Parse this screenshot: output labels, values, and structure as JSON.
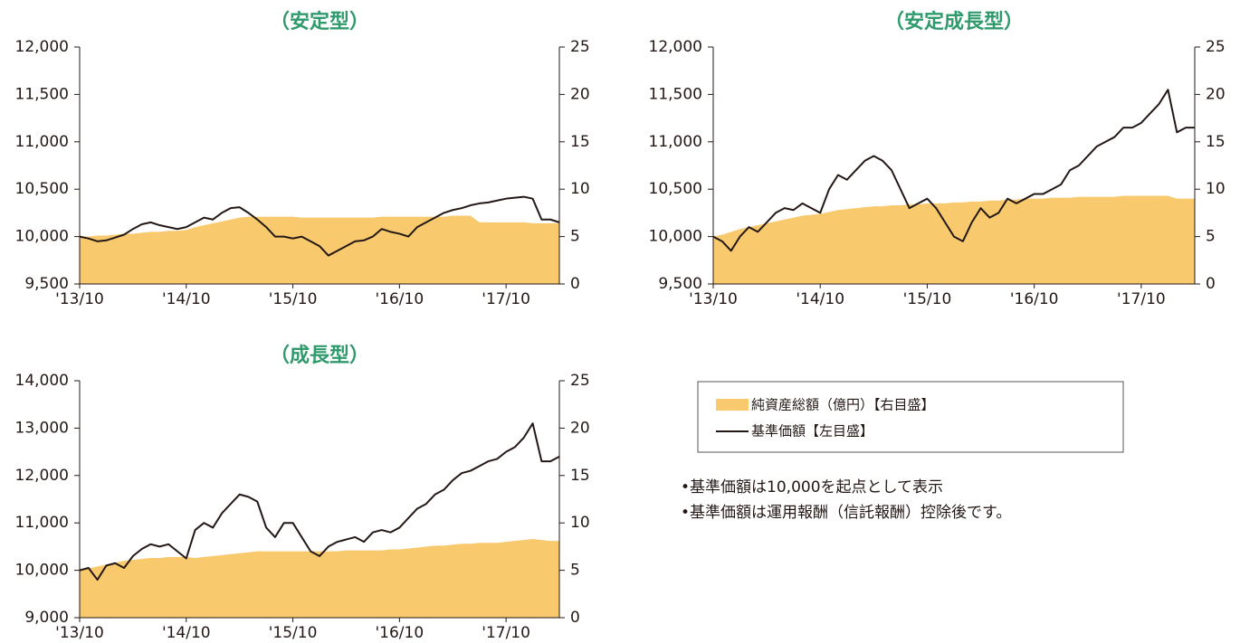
{
  "chart_data": [
    {
      "type": "line_area",
      "title": "（安定型）",
      "x": [
        "2013-10",
        "2013-11",
        "2013-12",
        "2014-01",
        "2014-02",
        "2014-03",
        "2014-04",
        "2014-05",
        "2014-06",
        "2014-07",
        "2014-08",
        "2014-09",
        "2014-10",
        "2014-11",
        "2014-12",
        "2015-01",
        "2015-02",
        "2015-03",
        "2015-04",
        "2015-05",
        "2015-06",
        "2015-07",
        "2015-08",
        "2015-09",
        "2015-10",
        "2015-11",
        "2015-12",
        "2016-01",
        "2016-02",
        "2016-03",
        "2016-04",
        "2016-05",
        "2016-06",
        "2016-07",
        "2016-08",
        "2016-09",
        "2016-10",
        "2016-11",
        "2016-12",
        "2017-01",
        "2017-02",
        "2017-03",
        "2017-04",
        "2017-05",
        "2017-06",
        "2017-07",
        "2017-08",
        "2017-09",
        "2017-10",
        "2017-11",
        "2017-12",
        "2018-01",
        "2018-02",
        "2018-03",
        "2018-04"
      ],
      "xlim": [
        "2013-10",
        "2018-04"
      ],
      "xticks": [
        {
          "value": "2013-10",
          "label": "'13/10"
        },
        {
          "value": "2014-10",
          "label": "'14/10"
        },
        {
          "value": "2015-10",
          "label": "'15/10"
        },
        {
          "value": "2016-10",
          "label": "'16/10"
        },
        {
          "value": "2017-10",
          "label": "'17/10"
        }
      ],
      "ylim": [
        9500,
        12000
      ],
      "yticks": [
        {
          "value": 9500,
          "label": "9,500"
        },
        {
          "value": 10000,
          "label": "10,000"
        },
        {
          "value": 10500,
          "label": "10,500"
        },
        {
          "value": 11000,
          "label": "11,000"
        },
        {
          "value": 11500,
          "label": "11,500"
        },
        {
          "value": 12000,
          "label": "12,000"
        }
      ],
      "y2lim": [
        0,
        25
      ],
      "y2ticks": [
        0,
        5,
        10,
        15,
        20,
        25
      ],
      "series": [
        {
          "name": "純資産総額（億円）【右目盛】",
          "color": "#f9c96e",
          "axis": "y2",
          "kind": "area",
          "values": [
            5.0,
            5.0,
            5.1,
            5.1,
            5.2,
            5.3,
            5.3,
            5.4,
            5.5,
            5.5,
            5.6,
            5.6,
            5.7,
            6.0,
            6.2,
            6.4,
            6.6,
            6.8,
            7.0,
            7.1,
            7.1,
            7.1,
            7.1,
            7.1,
            7.1,
            7.0,
            7.0,
            7.0,
            7.0,
            7.0,
            7.0,
            7.0,
            7.0,
            7.0,
            7.1,
            7.1,
            7.1,
            7.1,
            7.1,
            7.1,
            7.1,
            7.1,
            7.2,
            7.2,
            7.2,
            6.5,
            6.5,
            6.5,
            6.5,
            6.5,
            6.5,
            6.4,
            6.4,
            6.4,
            6.4
          ]
        },
        {
          "name": "基準価額【左目盛】",
          "color": "#231815",
          "kind": "line",
          "values": [
            10000,
            9980,
            9950,
            9960,
            9990,
            10020,
            10080,
            10130,
            10150,
            10120,
            10100,
            10080,
            10100,
            10150,
            10200,
            10180,
            10250,
            10300,
            10310,
            10250,
            10180,
            10100,
            10000,
            10000,
            9980,
            10000,
            9950,
            9900,
            9800,
            9850,
            9900,
            9950,
            9960,
            10000,
            10080,
            10050,
            10030,
            10000,
            10100,
            10150,
            10200,
            10250,
            10280,
            10300,
            10330,
            10350,
            10360,
            10380,
            10400,
            10410,
            10420,
            10400,
            10180,
            10180,
            10150
          ]
        }
      ]
    },
    {
      "type": "line_area",
      "title": "（安定成長型）",
      "x": [
        "2013-10",
        "2013-11",
        "2013-12",
        "2014-01",
        "2014-02",
        "2014-03",
        "2014-04",
        "2014-05",
        "2014-06",
        "2014-07",
        "2014-08",
        "2014-09",
        "2014-10",
        "2014-11",
        "2014-12",
        "2015-01",
        "2015-02",
        "2015-03",
        "2015-04",
        "2015-05",
        "2015-06",
        "2015-07",
        "2015-08",
        "2015-09",
        "2015-10",
        "2015-11",
        "2015-12",
        "2016-01",
        "2016-02",
        "2016-03",
        "2016-04",
        "2016-05",
        "2016-06",
        "2016-07",
        "2016-08",
        "2016-09",
        "2016-10",
        "2016-11",
        "2016-12",
        "2017-01",
        "2017-02",
        "2017-03",
        "2017-04",
        "2017-05",
        "2017-06",
        "2017-07",
        "2017-08",
        "2017-09",
        "2017-10",
        "2017-11",
        "2017-12",
        "2018-01",
        "2018-02",
        "2018-03",
        "2018-04"
      ],
      "xlim": [
        "2013-10",
        "2018-04"
      ],
      "xticks": [
        {
          "value": "2013-10",
          "label": "'13/10"
        },
        {
          "value": "2014-10",
          "label": "'14/10"
        },
        {
          "value": "2015-10",
          "label": "'15/10"
        },
        {
          "value": "2016-10",
          "label": "'16/10"
        },
        {
          "value": "2017-10",
          "label": "'17/10"
        }
      ],
      "ylim": [
        9500,
        12000
      ],
      "yticks": [
        {
          "value": 9500,
          "label": "9,500"
        },
        {
          "value": 10000,
          "label": "10,000"
        },
        {
          "value": 10500,
          "label": "10,500"
        },
        {
          "value": 11000,
          "label": "11,000"
        },
        {
          "value": 11500,
          "label": "11,500"
        },
        {
          "value": 12000,
          "label": "12,000"
        }
      ],
      "y2lim": [
        0,
        25
      ],
      "y2ticks": [
        0,
        5,
        10,
        15,
        20,
        25
      ],
      "series": [
        {
          "name": "純資産総額（億円）【右目盛】",
          "color": "#f9c96e",
          "axis": "y2",
          "kind": "area",
          "values": [
            5.0,
            5.2,
            5.5,
            5.8,
            6.0,
            6.2,
            6.4,
            6.6,
            6.8,
            7.0,
            7.2,
            7.3,
            7.4,
            7.6,
            7.8,
            7.9,
            8.0,
            8.1,
            8.2,
            8.2,
            8.3,
            8.3,
            8.4,
            8.4,
            8.5,
            8.5,
            8.5,
            8.6,
            8.6,
            8.7,
            8.7,
            8.8,
            8.8,
            8.9,
            8.9,
            9.0,
            9.0,
            9.0,
            9.1,
            9.1,
            9.1,
            9.2,
            9.2,
            9.2,
            9.2,
            9.2,
            9.3,
            9.3,
            9.3,
            9.3,
            9.3,
            9.3,
            9.0,
            9.0,
            9.0
          ]
        },
        {
          "name": "基準価額【左目盛】",
          "color": "#231815",
          "kind": "line",
          "values": [
            10000,
            9950,
            9850,
            10000,
            10100,
            10050,
            10150,
            10250,
            10300,
            10280,
            10350,
            10300,
            10250,
            10500,
            10650,
            10600,
            10700,
            10800,
            10850,
            10800,
            10700,
            10500,
            10300,
            10350,
            10400,
            10300,
            10150,
            10000,
            9950,
            10150,
            10300,
            10200,
            10250,
            10400,
            10350,
            10400,
            10450,
            10450,
            10500,
            10550,
            10700,
            10750,
            10850,
            10950,
            11000,
            11050,
            11150,
            11150,
            11200,
            11300,
            11400,
            11550,
            11100,
            11150,
            11150
          ]
        }
      ]
    },
    {
      "type": "line_area",
      "title": "（成長型）",
      "x": [
        "2013-10",
        "2013-11",
        "2013-12",
        "2014-01",
        "2014-02",
        "2014-03",
        "2014-04",
        "2014-05",
        "2014-06",
        "2014-07",
        "2014-08",
        "2014-09",
        "2014-10",
        "2014-11",
        "2014-12",
        "2015-01",
        "2015-02",
        "2015-03",
        "2015-04",
        "2015-05",
        "2015-06",
        "2015-07",
        "2015-08",
        "2015-09",
        "2015-10",
        "2015-11",
        "2015-12",
        "2016-01",
        "2016-02",
        "2016-03",
        "2016-04",
        "2016-05",
        "2016-06",
        "2016-07",
        "2016-08",
        "2016-09",
        "2016-10",
        "2016-11",
        "2016-12",
        "2017-01",
        "2017-02",
        "2017-03",
        "2017-04",
        "2017-05",
        "2017-06",
        "2017-07",
        "2017-08",
        "2017-09",
        "2017-10",
        "2017-11",
        "2017-12",
        "2018-01",
        "2018-02",
        "2018-03",
        "2018-04"
      ],
      "xlim": [
        "2013-10",
        "2018-04"
      ],
      "xticks": [
        {
          "value": "2013-10",
          "label": "'13/10"
        },
        {
          "value": "2014-10",
          "label": "'14/10"
        },
        {
          "value": "2015-10",
          "label": "'15/10"
        },
        {
          "value": "2016-10",
          "label": "'16/10"
        },
        {
          "value": "2017-10",
          "label": "'17/10"
        }
      ],
      "ylim": [
        9000,
        14000
      ],
      "yticks": [
        {
          "value": 9000,
          "label": "9,000"
        },
        {
          "value": 10000,
          "label": "10,000"
        },
        {
          "value": 11000,
          "label": "11,000"
        },
        {
          "value": 12000,
          "label": "12,000"
        },
        {
          "value": 13000,
          "label": "13,000"
        },
        {
          "value": 14000,
          "label": "14,000"
        }
      ],
      "y2lim": [
        0,
        25
      ],
      "y2ticks": [
        0,
        5,
        10,
        15,
        20,
        25
      ],
      "series": [
        {
          "name": "純資産総額（億円）【右目盛】",
          "color": "#f9c96e",
          "axis": "y2",
          "kind": "area",
          "values": [
            5.0,
            5.2,
            5.4,
            5.6,
            5.8,
            6.0,
            6.1,
            6.2,
            6.3,
            6.3,
            6.4,
            6.4,
            6.4,
            6.3,
            6.4,
            6.5,
            6.6,
            6.7,
            6.8,
            6.9,
            7.0,
            7.0,
            7.0,
            7.0,
            7.0,
            7.0,
            7.0,
            7.0,
            7.0,
            7.0,
            7.1,
            7.1,
            7.1,
            7.1,
            7.1,
            7.2,
            7.2,
            7.3,
            7.4,
            7.5,
            7.6,
            7.6,
            7.7,
            7.8,
            7.8,
            7.9,
            7.9,
            7.9,
            8.0,
            8.1,
            8.2,
            8.3,
            8.2,
            8.1,
            8.1
          ]
        },
        {
          "name": "基準価額【左目盛】",
          "color": "#231815",
          "kind": "line",
          "values": [
            10000,
            10050,
            9800,
            10100,
            10150,
            10050,
            10300,
            10450,
            10550,
            10500,
            10550,
            10400,
            10250,
            10850,
            11000,
            10900,
            11200,
            11400,
            11600,
            11550,
            11450,
            10900,
            10700,
            11000,
            11000,
            10700,
            10400,
            10300,
            10500,
            10600,
            10650,
            10700,
            10600,
            10800,
            10850,
            10800,
            10900,
            11100,
            11300,
            11400,
            11600,
            11700,
            11900,
            12050,
            12100,
            12200,
            12300,
            12350,
            12500,
            12600,
            12800,
            13100,
            12300,
            12300,
            12400
          ]
        }
      ]
    }
  ],
  "notes": [
    "•基準価額は10,000を起点として表示",
    "•基準価額は運用報酬（信託報酬）控除後です。"
  ]
}
